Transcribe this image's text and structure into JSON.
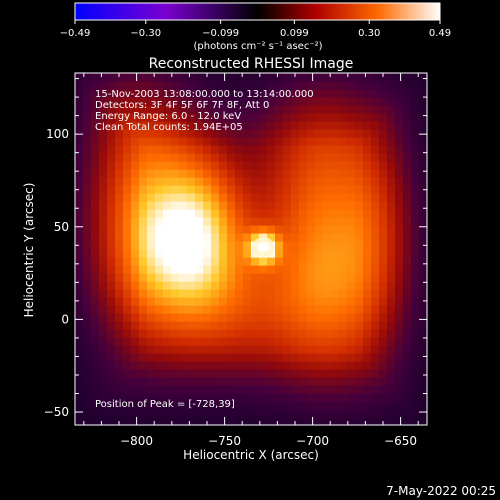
{
  "colorbar": {
    "tick_labels": [
      "-0.49",
      "-0.30",
      "-0.099",
      "0.099",
      "0.30",
      "0.49"
    ],
    "range": [
      -0.49,
      0.49
    ],
    "unit_label": "(photons cm⁻² s⁻¹ asec⁻²)"
  },
  "chart_data": {
    "type": "heatmap",
    "title": "Reconstructed RHESSI Image",
    "xlabel": "Heliocentric X (arcsec)",
    "ylabel": "Heliocentric Y (arcsec)",
    "xlim": [
      -835,
      -635
    ],
    "ylim": [
      -57,
      133
    ],
    "x_ticks": [
      {
        "value": -800,
        "label": "−800"
      },
      {
        "value": -750,
        "label": "−750"
      },
      {
        "value": -700,
        "label": "−700"
      },
      {
        "value": -650,
        "label": "−650"
      }
    ],
    "y_ticks": [
      {
        "value": -50,
        "label": "−50"
      },
      {
        "value": 0,
        "label": "0"
      },
      {
        "value": 50,
        "label": "50"
      },
      {
        "value": 100,
        "label": "100"
      }
    ],
    "info_lines": [
      "15-Nov-2003 13:08:00.000 to 13:14:00.000",
      "Detectors: 3F 4F 5F 6F 7F 8F, Att 0",
      "Energy Range: 6.0 - 12.0 keV",
      "Clean     Total counts: 1.94E+05"
    ],
    "peak_annotation": "Position of Peak = [-728,39]",
    "peak": {
      "x": -728,
      "y": 39,
      "value": 0.49
    },
    "blobs": [
      {
        "x": -800,
        "y": 75,
        "sx": 24,
        "sy": 50,
        "value": 0.2
      },
      {
        "x": -780,
        "y": 35,
        "sx": 28,
        "sy": 30,
        "value": 0.22
      },
      {
        "x": -765,
        "y": 50,
        "sx": 18,
        "sy": 28,
        "value": 0.22
      },
      {
        "x": -695,
        "y": 75,
        "sx": 24,
        "sy": 45,
        "value": 0.18
      },
      {
        "x": -690,
        "y": 15,
        "sx": 22,
        "sy": 35,
        "value": 0.18
      },
      {
        "x": -660,
        "y": 45,
        "sx": 15,
        "sy": 40,
        "value": 0.14
      },
      {
        "x": -740,
        "y": 5,
        "sx": 30,
        "sy": 25,
        "value": 0.12
      },
      {
        "x": -728,
        "y": 39,
        "sx": 6,
        "sy": 6,
        "value": 0.36
      }
    ]
  },
  "timestamp": "7-May-2022 00:25"
}
